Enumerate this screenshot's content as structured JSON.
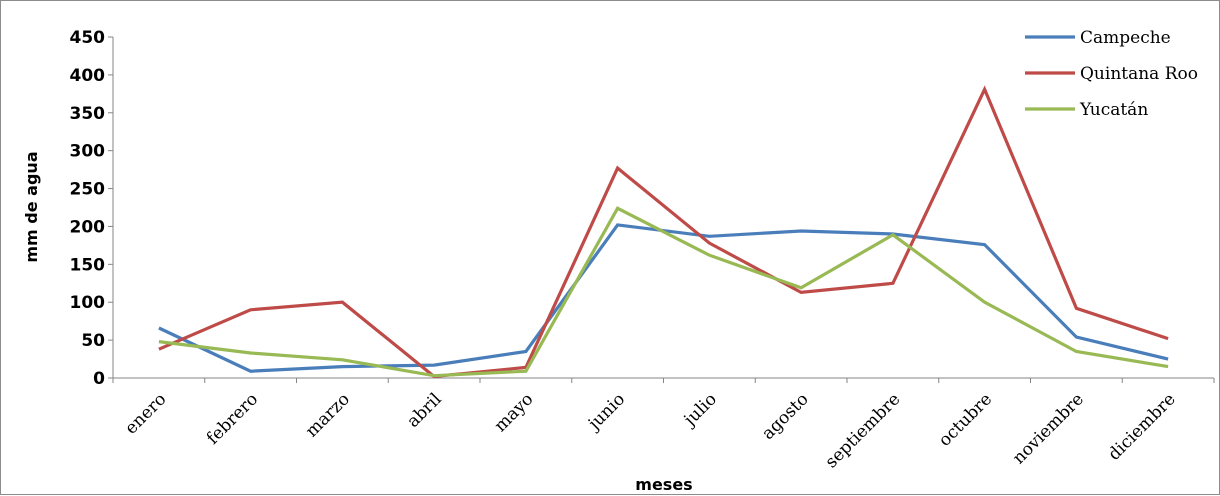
{
  "chart_data": {
    "type": "line",
    "title": "",
    "xlabel": "meses",
    "ylabel": "mm de agua",
    "ylim": [
      0,
      450
    ],
    "y_ticks": [
      "0",
      "50",
      "100",
      "150",
      "200",
      "250",
      "300",
      "350",
      "400",
      "450"
    ],
    "categories": [
      "enero",
      "febrero",
      "marzo",
      "abril",
      "mayo",
      "junio",
      "julio",
      "agosto",
      "septiembre",
      "octubre",
      "noviembre",
      "diciembre"
    ],
    "grid": false,
    "legend_position": "top-right",
    "series": [
      {
        "name": "Campeche",
        "color": "#4a7ebb",
        "values": [
          66,
          9,
          15,
          17,
          35,
          202,
          187,
          194,
          190,
          176,
          54,
          25
        ]
      },
      {
        "name": "Quintana Roo",
        "color": "#be4b48",
        "values": [
          38,
          90,
          100,
          2,
          14,
          277,
          178,
          113,
          125,
          381,
          92,
          52
        ]
      },
      {
        "name": "Yucatán",
        "color": "#98b954",
        "values": [
          48,
          33,
          24,
          3,
          9,
          224,
          162,
          119,
          189,
          100,
          35,
          15
        ]
      }
    ]
  }
}
